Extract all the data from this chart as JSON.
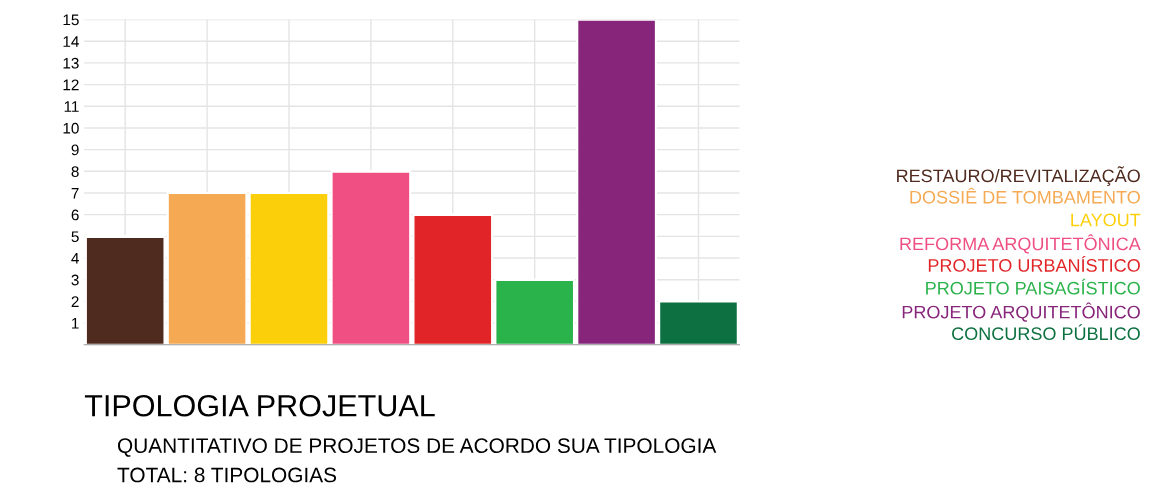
{
  "chart_data": {
    "type": "bar",
    "title": "TIPOLOGIA PROJETUAL",
    "subtitle": "QUANTITATIVO DE PROJETOS DE ACORDO SUA TIPOLOGIA",
    "annotations": [
      "TOTAL: 8 TIPOLOGIAS"
    ],
    "categories": [
      null,
      null,
      null,
      null,
      null,
      null,
      null,
      null
    ],
    "stacked": true,
    "series": [
      {
        "name": "RESTAURO/REVITALIZAÇÃO",
        "color": "#4f2a1e",
        "values": [
          5,
          null,
          null,
          null,
          null,
          null,
          null,
          null
        ]
      },
      {
        "name": "DOSSIÊ DE TOMBAMENTO",
        "color": "#f5a953",
        "values": [
          null,
          7,
          null,
          null,
          null,
          null,
          null,
          null
        ]
      },
      {
        "name": "LAYOUT",
        "color": "#fccf0b",
        "values": [
          null,
          null,
          7,
          null,
          null,
          null,
          null,
          null
        ]
      },
      {
        "name": "REFORMA ARQUITETÔNICA",
        "color": "#ef4f82",
        "values": [
          null,
          null,
          null,
          8,
          null,
          null,
          null,
          null
        ]
      },
      {
        "name": "PROJETO URBANÍSTICO",
        "color": "#e12427",
        "values": [
          null,
          null,
          null,
          null,
          6,
          null,
          null,
          null
        ]
      },
      {
        "name": "PROJETO PAISAGÍSTICO",
        "color": "#2bb34b",
        "values": [
          null,
          null,
          null,
          null,
          null,
          3,
          null,
          null
        ]
      },
      {
        "name": "PROJETO ARQUITETÔNICO",
        "color": "#86257a",
        "values": [
          null,
          null,
          null,
          null,
          null,
          null,
          15,
          null
        ]
      },
      {
        "name": "CONCURSO PÚBLICO",
        "color": "#0d7041",
        "values": [
          null,
          null,
          null,
          null,
          null,
          null,
          null,
          2
        ]
      }
    ],
    "ylim": [
      0,
      15
    ],
    "yticks": [
      1,
      2,
      3,
      4,
      5,
      6,
      7,
      8,
      9,
      10,
      11,
      12,
      13,
      14,
      15
    ],
    "grid": true,
    "legend": "right"
  }
}
